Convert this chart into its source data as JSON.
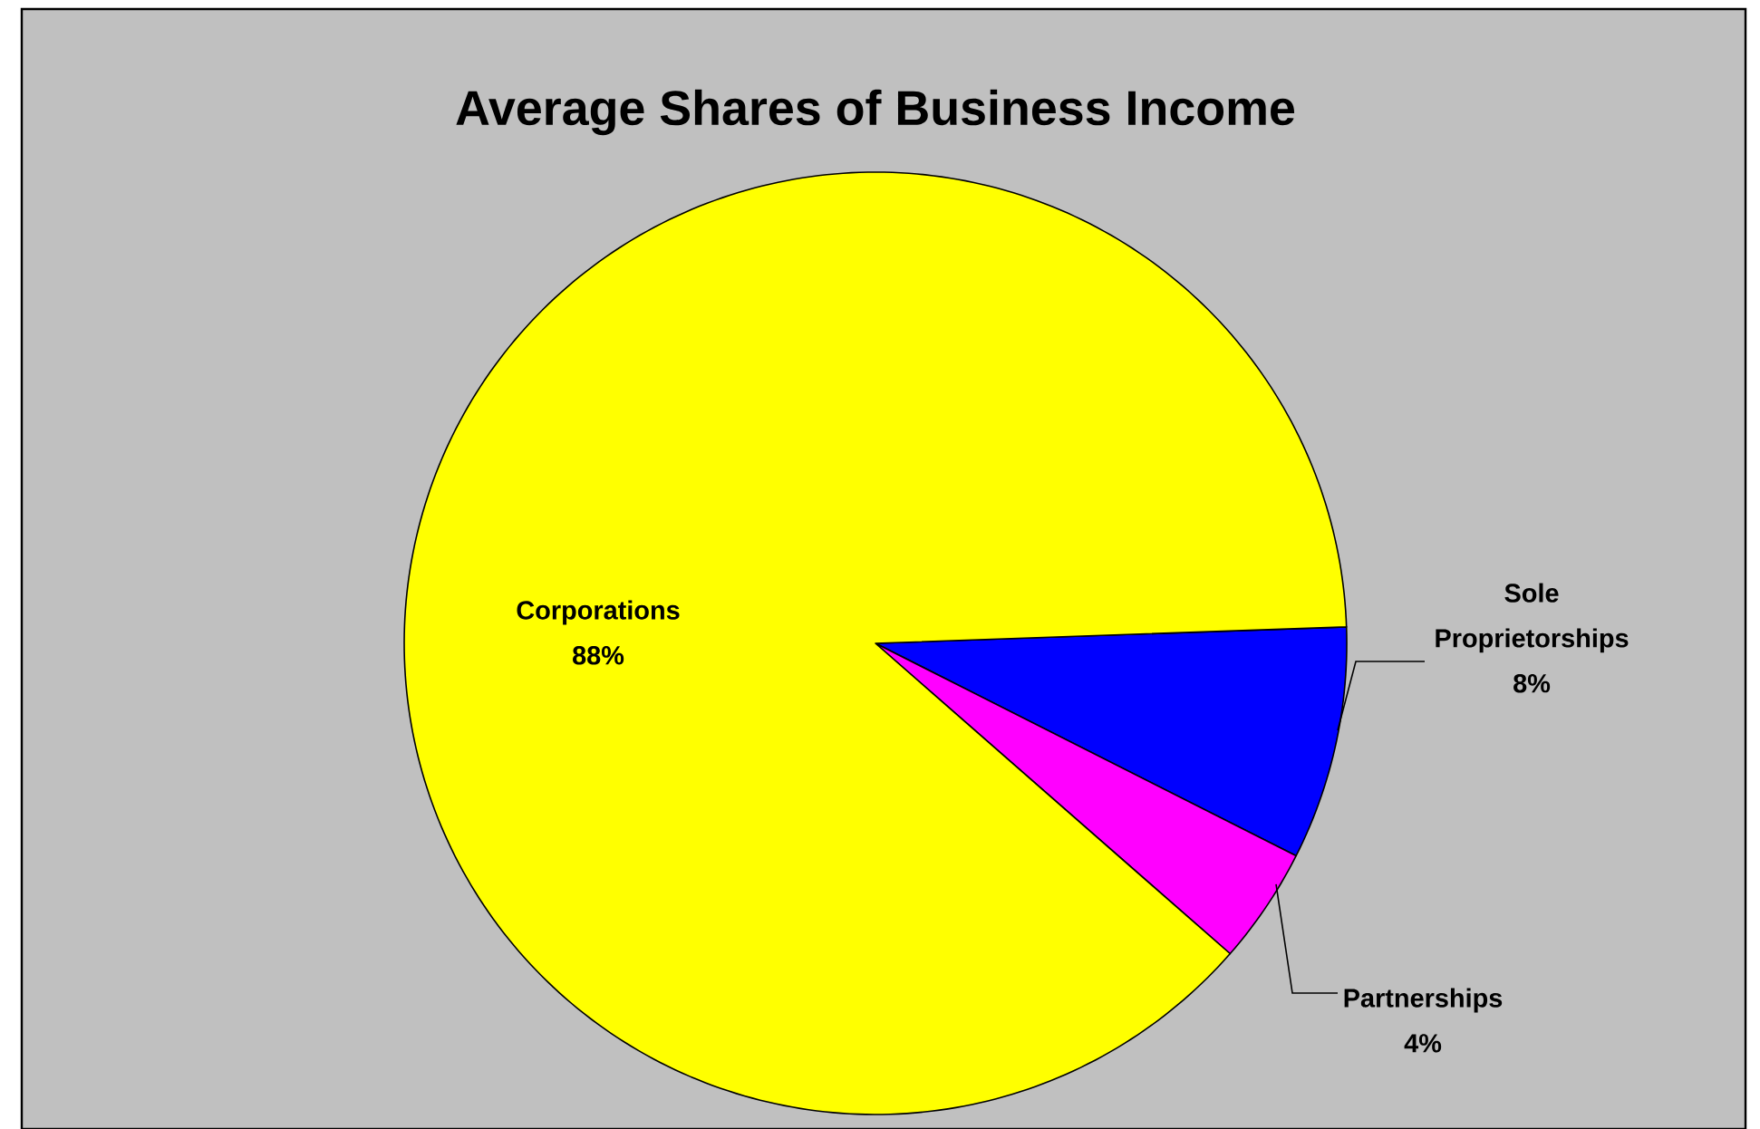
{
  "chart_data": {
    "type": "pie",
    "title": "Average Shares of Business Income",
    "categories": [
      "Sole Proprietorships",
      "Partnerships",
      "Corporations"
    ],
    "values": [
      8,
      4,
      88
    ],
    "colors": [
      "#0000ff",
      "#ff00ff",
      "#ffff00"
    ],
    "value_labels": [
      "8%",
      "4%",
      "88%"
    ]
  }
}
